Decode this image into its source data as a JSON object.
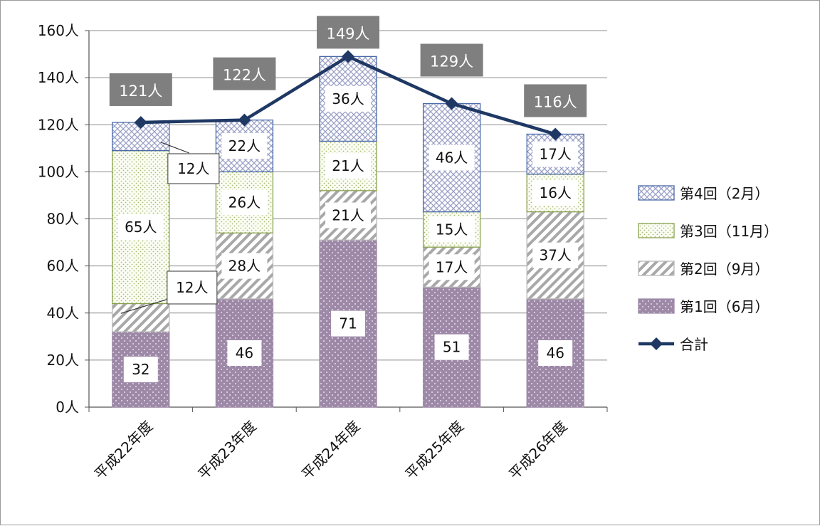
{
  "chart_data": {
    "type": "bar",
    "stacked": true,
    "categories": [
      "平成22年度",
      "平成23年度",
      "平成24年度",
      "平成25年度",
      "平成26年度"
    ],
    "series": [
      {
        "name": "第1回（6月）",
        "values": [
          32,
          46,
          71,
          51,
          46
        ],
        "labels": [
          "32",
          "46",
          "71",
          "51",
          "46"
        ]
      },
      {
        "name": "第2回（9月）",
        "values": [
          12,
          28,
          21,
          17,
          37
        ],
        "labels": [
          "12人",
          "28人",
          "21人",
          "17人",
          "37人"
        ]
      },
      {
        "name": "第3回（11月）",
        "values": [
          65,
          26,
          21,
          15,
          16
        ],
        "labels": [
          "65人",
          "26人",
          "21人",
          "15人",
          "16人"
        ]
      },
      {
        "name": "第4回（2月）",
        "values": [
          12,
          22,
          36,
          46,
          17
        ],
        "labels": [
          "12人",
          "22人",
          "36人",
          "46人",
          "17人"
        ]
      }
    ],
    "line": {
      "name": "合計",
      "values": [
        121,
        122,
        149,
        129,
        116
      ],
      "labels": [
        "121人",
        "122人",
        "149人",
        "129人",
        "116人"
      ]
    },
    "yticks": [
      "0人",
      "20人",
      "40人",
      "60人",
      "80人",
      "100人",
      "120人",
      "140人",
      "160人"
    ],
    "ylim": [
      0,
      160
    ],
    "grid": true,
    "legend": "right",
    "colors": {
      "s1": "#9e8aa8",
      "s2": "#b9b9b9",
      "s3": "#8aa14f",
      "s4": "#4a6aa8",
      "line": "#1f3864",
      "total_box": "#7f7f7f"
    }
  }
}
